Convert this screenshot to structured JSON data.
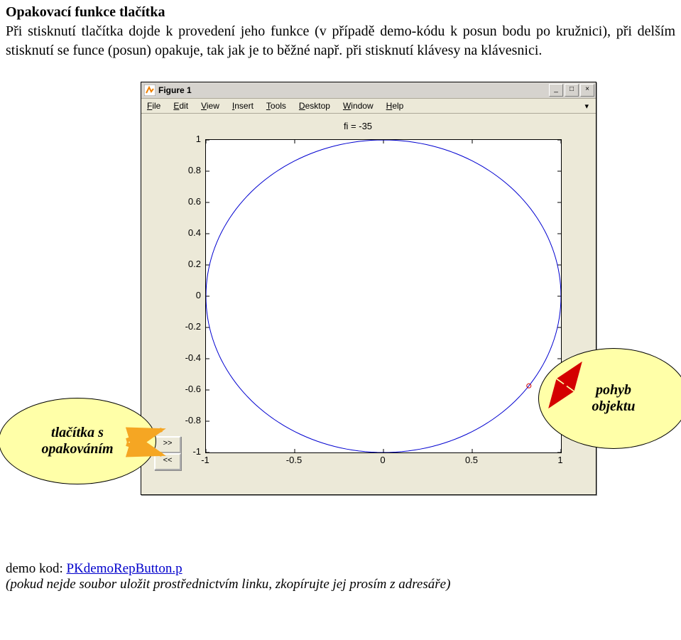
{
  "doc": {
    "heading": "Opakovací funkce tlačítka",
    "paragraph": "Při stisknutí tlačítka dojde k provedení jeho funkce (v případě demo-kódu k posun bodu po kružnici), při delším stisknutí se funce (posun) opakuje, tak jak je to běžné např. při stisknutí klávesy na klávesnici."
  },
  "window": {
    "title": "Figure 1",
    "minimize": "_",
    "maximize": "□",
    "close": "×",
    "menus": [
      "File",
      "Edit",
      "View",
      "Insert",
      "Tools",
      "Desktop",
      "Window",
      "Help"
    ]
  },
  "chart": {
    "type": "line",
    "title": "fi = -35",
    "title_fontsize": 13,
    "axes_width": 500,
    "axes_height": 440,
    "xlim": [
      -1,
      1
    ],
    "ylim": [
      -1,
      1
    ],
    "xticks": [
      -1,
      -0.5,
      0,
      0.5,
      1
    ],
    "yticks": [
      -1,
      -0.8,
      -0.6,
      -0.4,
      -0.2,
      0,
      0.2,
      0.4,
      0.6,
      0.8,
      1
    ],
    "xtick_labels": [
      "-1",
      "-0.5",
      "0",
      "0.5",
      "1"
    ],
    "ytick_labels": [
      "-1",
      "-0.8",
      "-0.6",
      "-0.4",
      "-0.2",
      "0",
      "0.2",
      "0.4",
      "0.6",
      "0.8",
      "1"
    ],
    "label_fontsize": 13,
    "background_color": "#ffffff",
    "line_color": "#0000d0",
    "marker_color": "#d00000",
    "marker_angle_deg": -35,
    "marker_style": "circle",
    "marker_size": 6
  },
  "buttons": {
    "forward": ">>",
    "backward": "<<"
  },
  "bubbles": {
    "left": "tlačítka s\nopakováním",
    "right": "pohyb\nobjektu"
  },
  "footer": {
    "prefix": "demo kod: ",
    "link": "PKdemoRepButton.p",
    "note": "(pokud nejde soubor uložit prostřednictvím linku, zkopírujte jej prosím  z adresáře)"
  },
  "colors": {
    "bubble_fill": "#ffffa8",
    "orange_arrow": "#f5a623",
    "red_arrow": "#d40000",
    "win_bg": "#ece9d8"
  }
}
